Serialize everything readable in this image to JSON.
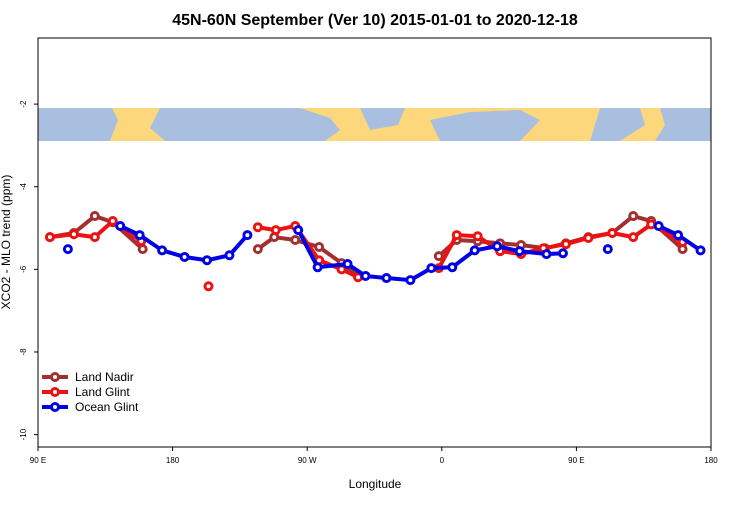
{
  "chart_data": {
    "type": "line",
    "title": "45N-60N September (Ver 10)   2015-01-01 to 2020-12-18",
    "x_label": "Longitude",
    "y_label": "XCO2 - MLO trend (ppm)",
    "xlim": [
      90,
      540
    ],
    "xticks": [
      {
        "value": 90,
        "label": "90 E"
      },
      180,
      {
        "value": 270,
        "label": "90 W"
      },
      {
        "value": 360,
        "label": "0"
      },
      {
        "value": 450,
        "label": "90 E"
      },
      {
        "value": 540,
        "label": "180"
      }
    ],
    "ylim": [
      -10.3,
      -0.4
    ],
    "yticks": [
      -2,
      -4,
      -6,
      -8,
      -10
    ],
    "grid": false,
    "legend": "bottom-left",
    "series": [
      {
        "name": "Land Nadir",
        "color": "#a33030",
        "x": [
          98,
          114,
          128,
          140,
          160,
          null,
          237,
          248,
          262,
          278,
          293,
          304,
          null,
          358,
          370,
          384,
          399,
          413,
          429,
          443,
          458,
          474,
          488,
          500,
          521
        ],
        "values": [
          -5.22,
          -5.12,
          -4.71,
          -4.86,
          -5.51,
          null,
          -5.51,
          -5.22,
          -5.29,
          -5.46,
          -5.85,
          -6.16,
          null,
          -5.68,
          -5.29,
          -5.32,
          -5.37,
          -5.41,
          -5.49,
          -5.37,
          -5.22,
          -5.12,
          -4.71,
          -4.83,
          -5.51
        ]
      },
      {
        "name": "Land Glint",
        "color": "#ee1111",
        "x": [
          98,
          114,
          128,
          140,
          159,
          null,
          204,
          null,
          237,
          249,
          262,
          278,
          293,
          304,
          null,
          358,
          370,
          384,
          399,
          413,
          428,
          443,
          458,
          474,
          488,
          500,
          521
        ],
        "values": [
          -5.22,
          -5.15,
          -5.22,
          -4.83,
          -5.32,
          null,
          -6.41,
          null,
          -4.98,
          -5.05,
          -4.95,
          -5.78,
          -6.0,
          -6.19,
          null,
          -5.97,
          -5.17,
          -5.2,
          -5.56,
          -5.63,
          -5.49,
          -5.39,
          -5.24,
          -5.12,
          -5.22,
          -4.91,
          -5.34
        ]
      },
      {
        "name": "Ocean Glint",
        "color": "#0000e6",
        "x": [
          110,
          null,
          145,
          158,
          173,
          188,
          203,
          218,
          230,
          null,
          264,
          277,
          297,
          309,
          323,
          339,
          353,
          367,
          382,
          397,
          412,
          430,
          441,
          null,
          471,
          null,
          505,
          518,
          533
        ],
        "values": [
          -5.51,
          null,
          -4.95,
          -5.17,
          -5.54,
          -5.7,
          -5.78,
          -5.66,
          -5.17,
          null,
          -5.05,
          -5.95,
          -5.87,
          -6.16,
          -6.21,
          -6.26,
          -5.97,
          -5.95,
          -5.54,
          -5.44,
          -5.56,
          -5.63,
          -5.61,
          null,
          -5.51,
          null,
          -4.95,
          -5.17,
          -5.54
        ]
      }
    ]
  }
}
